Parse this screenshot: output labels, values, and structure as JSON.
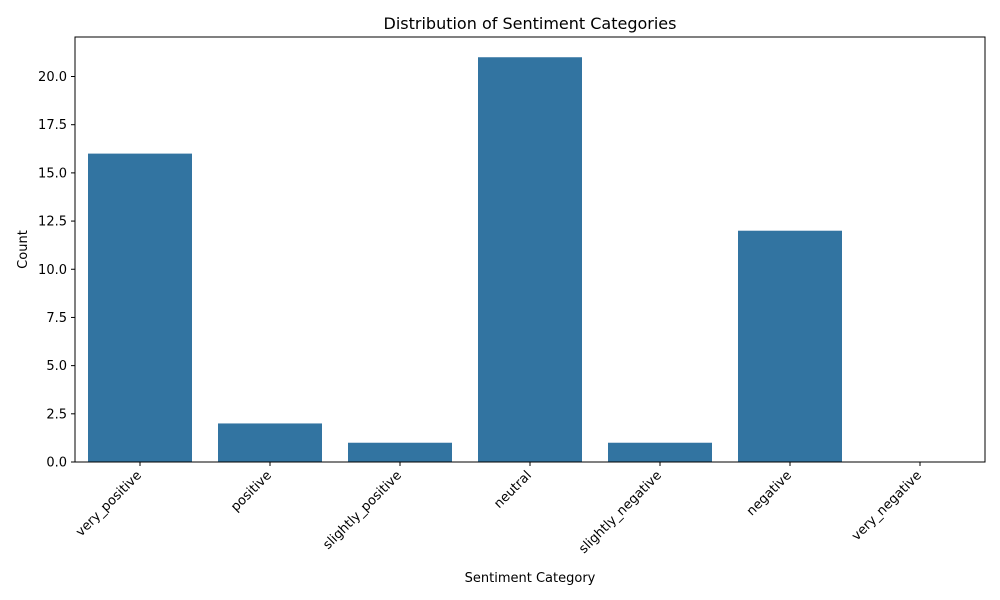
{
  "chart_data": {
    "type": "bar",
    "title": "Distribution of Sentiment Categories",
    "xlabel": "Sentiment Category",
    "ylabel": "Count",
    "categories": [
      "very_positive",
      "positive",
      "slightly_positive",
      "neutral",
      "slightly_negative",
      "negative",
      "very_negative"
    ],
    "values": [
      16,
      2,
      1,
      21,
      1,
      12,
      0
    ],
    "ylim": [
      0,
      22.05
    ],
    "yticks": [
      "0.0",
      "2.5",
      "5.0",
      "7.5",
      "10.0",
      "12.5",
      "15.0",
      "17.5",
      "20.0"
    ],
    "bar_color": "#3274a1",
    "grid": false,
    "legend": false
  }
}
